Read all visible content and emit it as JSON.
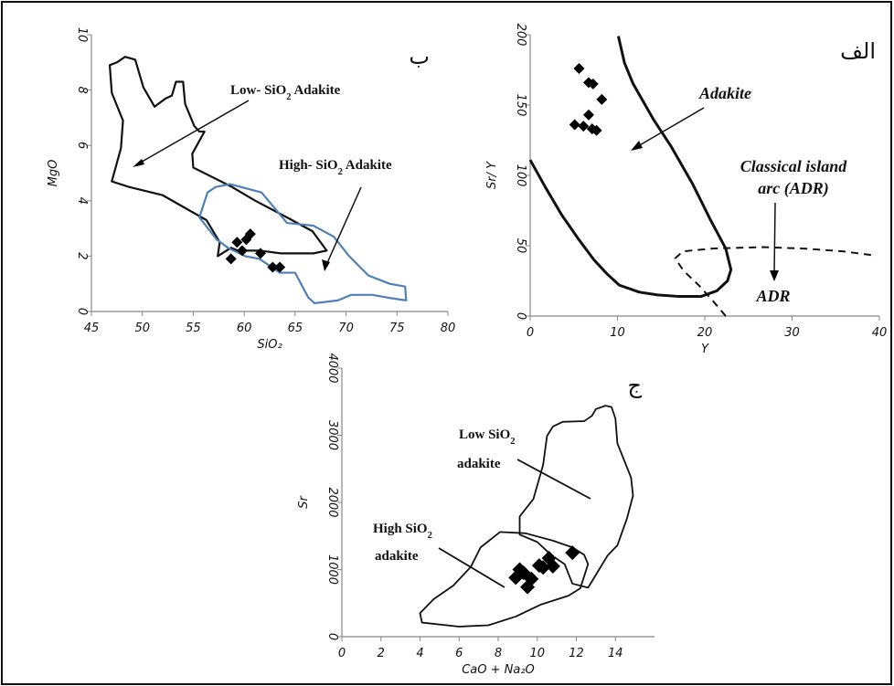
{
  "chart_data": [
    {
      "type": "scatter",
      "panel_label": "ب",
      "xlabel": "SiO₂",
      "ylabel": "MgO",
      "xlim": [
        45,
        80
      ],
      "ylim": [
        0,
        10
      ],
      "xticks": [
        "45",
        "50",
        "55",
        "60",
        "65",
        "70",
        "75",
        "80"
      ],
      "yticks": [
        "0",
        "2",
        "4",
        "6",
        "8",
        "10"
      ],
      "points": [
        [
          58.7,
          1.9
        ],
        [
          59.3,
          2.5
        ],
        [
          59.8,
          2.2
        ],
        [
          60.2,
          2.6
        ],
        [
          60.6,
          2.8
        ],
        [
          61.6,
          2.1
        ],
        [
          62.8,
          1.6
        ],
        [
          63.5,
          1.6
        ]
      ],
      "fields": [
        {
          "label_parts": [
            "Low- SiO",
            "2",
            " Adakite"
          ],
          "color": "#111111",
          "polygon": [
            [
              47.5,
              9.0
            ],
            [
              48.3,
              9.2
            ],
            [
              49.3,
              9.1
            ],
            [
              50.1,
              8.1
            ],
            [
              51.2,
              7.4
            ],
            [
              52.3,
              7.7
            ],
            [
              52.9,
              7.8
            ],
            [
              53.3,
              8.3
            ],
            [
              54.0,
              8.3
            ],
            [
              54.2,
              7.5
            ],
            [
              55.1,
              6.7
            ],
            [
              55.6,
              6.5
            ],
            [
              56.1,
              6.5
            ],
            [
              54.9,
              5.7
            ],
            [
              55.0,
              5.2
            ],
            [
              58.8,
              4.5
            ],
            [
              61.1,
              4.0
            ],
            [
              64.2,
              3.4
            ],
            [
              66.7,
              2.9
            ],
            [
              68.1,
              2.2
            ],
            [
              66.8,
              2.1
            ],
            [
              65.6,
              2.1
            ],
            [
              63.6,
              2.1
            ],
            [
              61.5,
              2.2
            ],
            [
              59.4,
              2.2
            ],
            [
              58.7,
              2.3
            ],
            [
              57.4,
              2.0
            ],
            [
              57.6,
              2.5
            ],
            [
              56.3,
              3.3
            ],
            [
              52.0,
              4.2
            ],
            [
              48.7,
              4.5
            ],
            [
              47.0,
              4.7
            ],
            [
              47.9,
              5.9
            ],
            [
              48.1,
              6.9
            ],
            [
              47.0,
              7.9
            ],
            [
              46.8,
              8.9
            ]
          ]
        },
        {
          "label_parts": [
            "High- SiO",
            "2",
            " Adakite"
          ],
          "color": "#4f7fb8",
          "polygon": [
            [
              55.6,
              3.4
            ],
            [
              56.4,
              4.3
            ],
            [
              57.2,
              4.5
            ],
            [
              58.6,
              4.6
            ],
            [
              60.7,
              4.4
            ],
            [
              61.7,
              4.3
            ],
            [
              64.2,
              3.2
            ],
            [
              66.8,
              3.1
            ],
            [
              68.8,
              2.7
            ],
            [
              70.3,
              2.0
            ],
            [
              72.2,
              1.3
            ],
            [
              74.3,
              1.0
            ],
            [
              75.8,
              0.9
            ],
            [
              75.9,
              0.4
            ],
            [
              74.1,
              0.5
            ],
            [
              72.6,
              0.6
            ],
            [
              70.5,
              0.6
            ],
            [
              69.2,
              0.4
            ],
            [
              66.9,
              0.3
            ],
            [
              66.3,
              0.5
            ],
            [
              65.0,
              1.4
            ],
            [
              63.5,
              1.4
            ],
            [
              61.5,
              1.9
            ],
            [
              60.1,
              2.0
            ],
            [
              58.4,
              2.3
            ],
            [
              57.3,
              2.6
            ]
          ]
        }
      ]
    },
    {
      "type": "scatter",
      "panel_label": "الف",
      "xlabel": "Y",
      "ylabel": "Sr/ Y",
      "xlim": [
        0,
        40
      ],
      "ylim": [
        0,
        200
      ],
      "xticks": [
        "0",
        "10",
        "20",
        "30",
        "40"
      ],
      "yticks": [
        "0",
        "50",
        "100",
        "150",
        "200"
      ],
      "points": [
        [
          5.6,
          176
        ],
        [
          6.7,
          166
        ],
        [
          7.2,
          165
        ],
        [
          8.2,
          154
        ],
        [
          6.7,
          143
        ],
        [
          5.1,
          136
        ],
        [
          6.1,
          135
        ],
        [
          7.1,
          133
        ],
        [
          7.6,
          132
        ]
      ],
      "curves": [
        {
          "label": "Adakite",
          "style": "solid",
          "points": [
            [
              0,
              111
            ],
            [
              1.7,
              92
            ],
            [
              3.6,
              72
            ],
            [
              5.5,
              55
            ],
            [
              7.3,
              40
            ],
            [
              8.8,
              30
            ],
            [
              10.2,
              22
            ],
            [
              12.5,
              17
            ],
            [
              14.6,
              15
            ],
            [
              16.9,
              14
            ],
            [
              19.6,
              14
            ],
            [
              21.4,
              18
            ],
            [
              22.6,
              25
            ],
            [
              23.0,
              33
            ],
            [
              22.4,
              48
            ],
            [
              20.6,
              69
            ],
            [
              18.6,
              94
            ],
            [
              16.1,
              121
            ],
            [
              14.1,
              140
            ],
            [
              11.8,
              165
            ],
            [
              10.8,
              180
            ],
            [
              10.1,
              199
            ]
          ]
        },
        {
          "label_parts": [
            "Classical island",
            "arc (ADR)"
          ],
          "label_sub": "ADR",
          "style": "dashed",
          "points": [
            [
              22.4,
              0
            ],
            [
              20.9,
              11
            ],
            [
              19.3,
              22
            ],
            [
              17.6,
              32
            ],
            [
              16.6,
              41
            ],
            [
              17.5,
              46
            ],
            [
              20.9,
              48
            ],
            [
              26.6,
              49
            ],
            [
              31.3,
              48
            ],
            [
              35.8,
              46
            ],
            [
              39.6,
              43
            ]
          ]
        }
      ]
    },
    {
      "type": "scatter",
      "panel_label": "ج",
      "xlabel": "CaO + Na₂O",
      "ylabel": "Sr",
      "xlim": [
        0,
        16
      ],
      "ylim": [
        0,
        4000
      ],
      "xticks": [
        "0",
        "2",
        "4",
        "6",
        "8",
        "10",
        "12",
        "14"
      ],
      "yticks": [
        "0",
        "1000",
        "2000",
        "3000",
        "4000"
      ],
      "points": [
        [
          8.9,
          880
        ],
        [
          9.1,
          1000
        ],
        [
          9.3,
          950
        ],
        [
          9.5,
          740
        ],
        [
          9.7,
          860
        ],
        [
          10.1,
          1060
        ],
        [
          10.3,
          1030
        ],
        [
          10.6,
          1170
        ],
        [
          10.8,
          1050
        ],
        [
          11.8,
          1250
        ]
      ],
      "fields": [
        {
          "label_parts": [
            "Low SiO",
            "2",
            "adakite"
          ],
          "color": "#111111",
          "polygon": [
            [
              13.5,
              3440
            ],
            [
              13.0,
              3390
            ],
            [
              12.8,
              3290
            ],
            [
              12.4,
              3210
            ],
            [
              11.3,
              3200
            ],
            [
              10.8,
              3130
            ],
            [
              10.5,
              2990
            ],
            [
              10.3,
              2560
            ],
            [
              9.8,
              2050
            ],
            [
              9.1,
              1790
            ],
            [
              9.1,
              1520
            ],
            [
              10.0,
              1410
            ],
            [
              10.7,
              1220
            ],
            [
              11.4,
              1080
            ],
            [
              11.8,
              790
            ],
            [
              12.6,
              730
            ],
            [
              13.0,
              920
            ],
            [
              13.6,
              1210
            ],
            [
              14.1,
              1360
            ],
            [
              14.6,
              1770
            ],
            [
              14.9,
              2100
            ],
            [
              14.8,
              2370
            ],
            [
              14.1,
              2880
            ],
            [
              14.0,
              3250
            ],
            [
              13.8,
              3420
            ]
          ]
        },
        {
          "label_parts": [
            "High SiO",
            "2",
            "adakite"
          ],
          "color": "#111111",
          "polygon": [
            [
              4.0,
              350
            ],
            [
              4.7,
              560
            ],
            [
              5.7,
              760
            ],
            [
              6.6,
              1040
            ],
            [
              7.1,
              1330
            ],
            [
              8.1,
              1560
            ],
            [
              9.4,
              1540
            ],
            [
              10.8,
              1430
            ],
            [
              11.8,
              1330
            ],
            [
              12.4,
              1220
            ],
            [
              12.6,
              1080
            ],
            [
              12.2,
              720
            ],
            [
              11.6,
              610
            ],
            [
              10.2,
              480
            ],
            [
              8.9,
              300
            ],
            [
              7.5,
              170
            ],
            [
              6.0,
              150
            ],
            [
              4.1,
              210
            ]
          ]
        }
      ]
    }
  ]
}
